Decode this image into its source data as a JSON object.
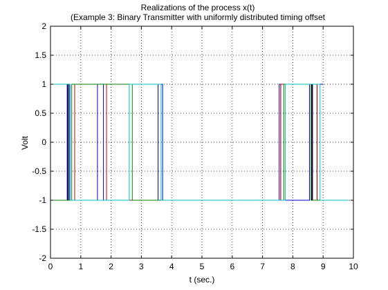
{
  "chart_data": {
    "type": "line",
    "title": "Realizations of the process x(t)",
    "subtitle": "(Example 3: Binary Transmitter with uniformly distributed timing offset",
    "xlabel": "t (sec.)",
    "ylabel": "Volt",
    "xlim": [
      0,
      10
    ],
    "ylim": [
      -2,
      2
    ],
    "xticks": [
      "0",
      "1",
      "2",
      "3",
      "4",
      "5",
      "6",
      "7",
      "8",
      "9",
      "10"
    ],
    "yticks": [
      "-2",
      "-1.5",
      "-1",
      "-0.5",
      "0",
      "0.5",
      "1",
      "1.5",
      "2"
    ],
    "grid": true,
    "series": [
      {
        "color": "#0000cc",
        "x": [
          0,
          0.55,
          0.55,
          0.62,
          0.62,
          1.55,
          1.55,
          1.75,
          1.75,
          3.55,
          3.55,
          3.7,
          3.7,
          7.55,
          7.55,
          7.6,
          7.6,
          8.55,
          8.55,
          8.65,
          8.65,
          8.8,
          8.8,
          9.0
        ],
        "y": [
          -1,
          -1,
          1,
          1,
          -1,
          -1,
          1,
          1,
          -1,
          -1,
          1,
          1,
          -1,
          -1,
          1,
          1,
          -1,
          -1,
          1,
          1,
          -1,
          -1,
          1,
          1
        ]
      },
      {
        "color": "#cc0000",
        "x": [
          0,
          0.8,
          0.8,
          1.85,
          1.85,
          7.6,
          7.6,
          8.8,
          8.8,
          9.85
        ],
        "y": [
          -1,
          -1,
          1,
          1,
          -1,
          -1,
          1,
          1,
          -1,
          -1
        ]
      },
      {
        "color": "#008000",
        "x": [
          0,
          0.7,
          0.7,
          2.7,
          2.7,
          7.7,
          7.7,
          8.6,
          8.6,
          9.8
        ],
        "y": [
          -1,
          -1,
          1,
          1,
          -1,
          -1,
          1,
          1,
          -1,
          -1
        ]
      },
      {
        "color": "#00bfbf",
        "x": [
          0,
          0.65,
          0.65,
          2.6,
          2.6,
          3.65,
          3.65,
          7.75,
          7.75,
          8.9,
          8.9,
          9.85
        ],
        "y": [
          1,
          1,
          -1,
          -1,
          1,
          1,
          -1,
          -1,
          1,
          1,
          -1,
          -1
        ]
      },
      {
        "color": "#000000",
        "x": [
          0.58,
          0.58,
          8.63,
          8.63
        ],
        "y": [
          -1,
          1,
          -1,
          1
        ]
      }
    ]
  }
}
